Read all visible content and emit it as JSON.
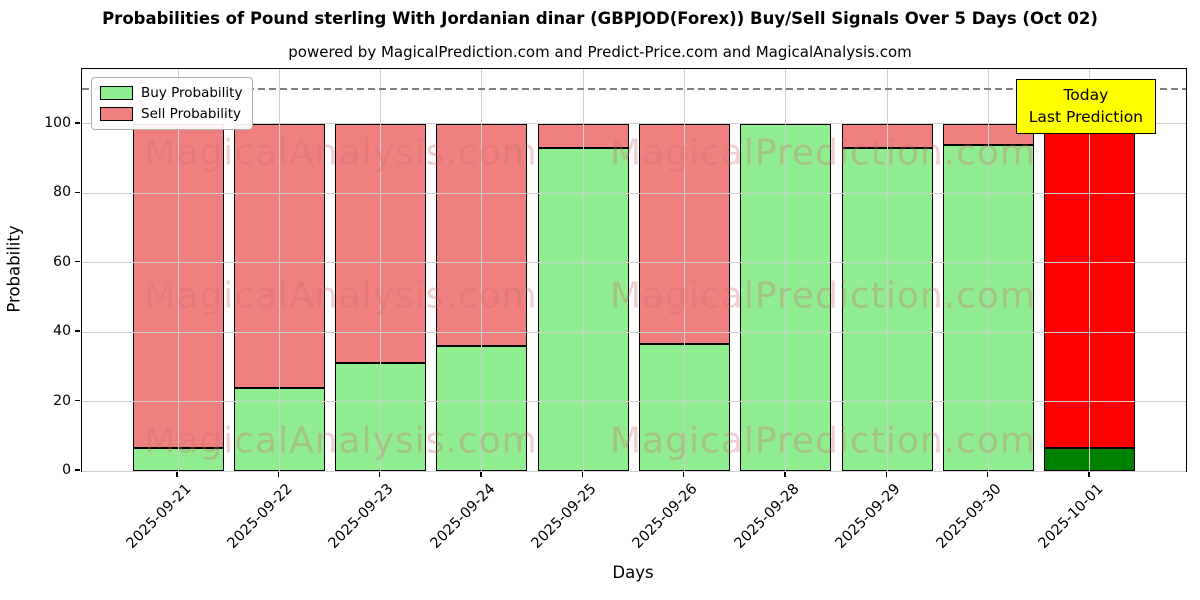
{
  "title": "Probabilities of Pound sterling With Jordanian dinar (GBPJOD(Forex)) Buy/Sell Signals Over 5 Days (Oct 02)",
  "subtitle": "powered by MagicalPrediction.com and Predict-Price.com and MagicalAnalysis.com",
  "legend": {
    "buy": "Buy Probability",
    "sell": "Sell Probability"
  },
  "annotation": {
    "line1": "Today",
    "line2": "Last Prediction"
  },
  "watermarks": [
    "MagicalAnalysis.com",
    "MagicalPrediction.com"
  ],
  "colors": {
    "buy": "#90EE90",
    "sell": "#F08080",
    "buy_today": "#008000",
    "sell_today": "#FF0000",
    "bar_edge": "#000000",
    "annotation_bg": "#FFFF00",
    "dashed_line": "#7F7F7F",
    "grid": "#CFCFCF",
    "watermark": "rgba(205,110,110,0.32)"
  },
  "chart_data": {
    "type": "bar",
    "stacked": true,
    "title": "Probabilities of Pound sterling With Jordanian dinar (GBPJOD(Forex)) Buy/Sell Signals Over 5 Days (Oct 02)",
    "xlabel": "Days",
    "ylabel": "Probability",
    "categories": [
      "2025-09-21",
      "2025-09-22",
      "2025-09-23",
      "2025-09-24",
      "2025-09-25",
      "2025-09-26",
      "2025-09-28",
      "2025-09-29",
      "2025-09-30",
      "2025-10-01"
    ],
    "series": [
      {
        "name": "Buy Probability",
        "values": [
          6.5,
          24,
          31,
          36,
          93,
          36.5,
          100,
          93,
          94,
          6.5
        ]
      },
      {
        "name": "Sell Probability",
        "values": [
          93.5,
          76,
          69,
          64,
          7,
          63.5,
          0,
          7,
          6,
          93.5
        ]
      }
    ],
    "yticks": [
      0,
      20,
      40,
      60,
      80,
      100
    ],
    "ylim": [
      0,
      115.8
    ],
    "dashed_line_y": 110,
    "today_index": 9,
    "grid": true,
    "legend_position": "upper-left"
  }
}
